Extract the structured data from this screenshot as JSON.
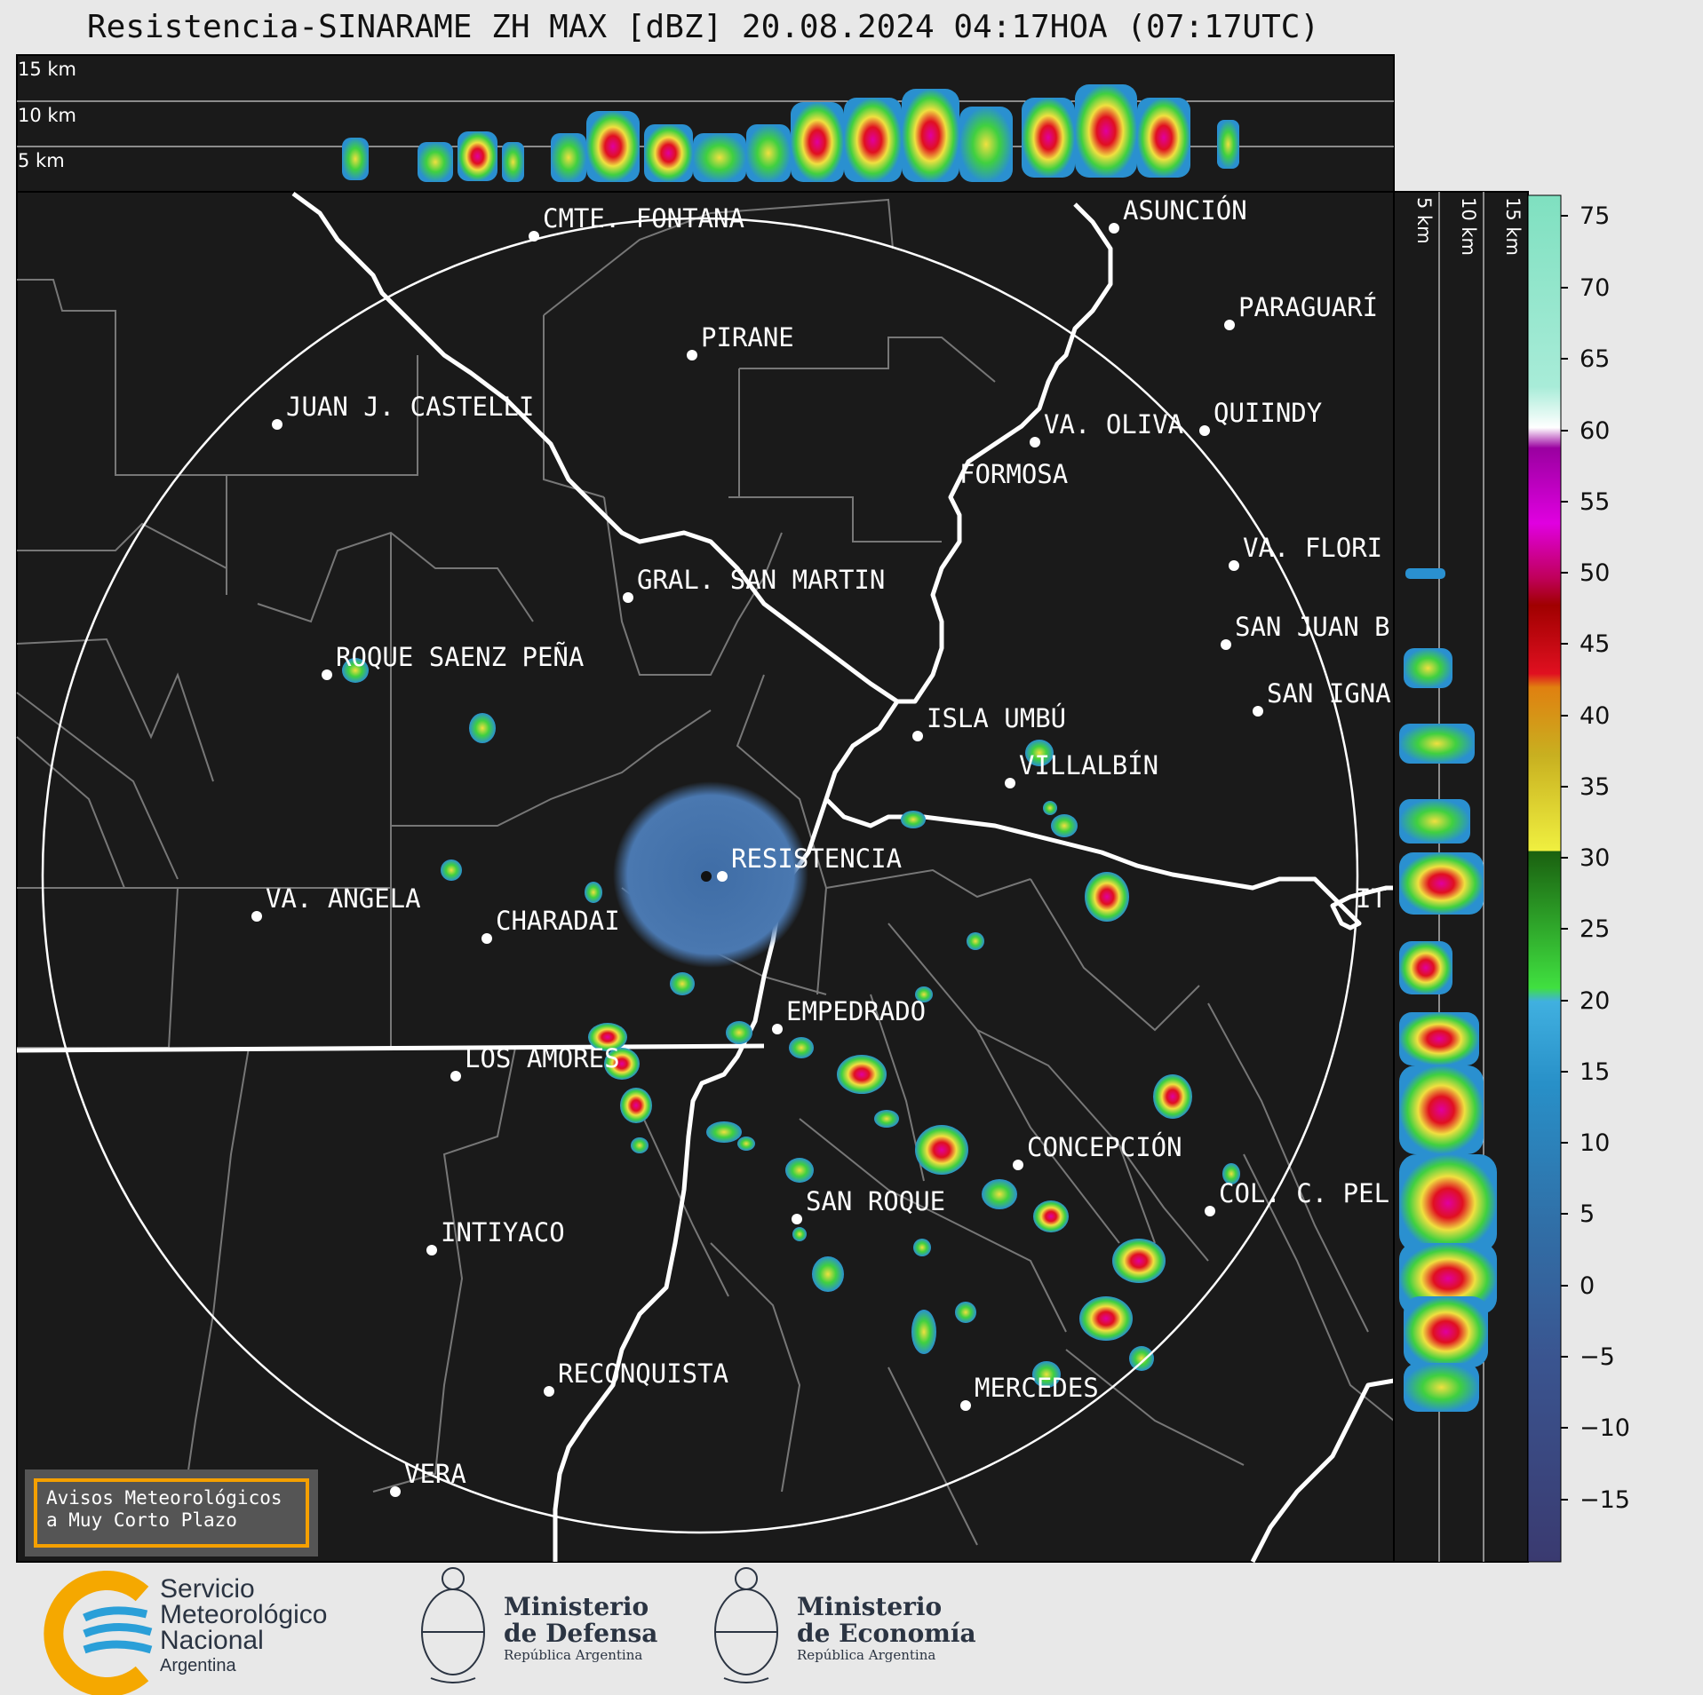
{
  "title": "Resistencia-SINARAME ZH MAX [dBZ] 20.08.2024 04:17HOA (07:17UTC)",
  "profile_top_labels": [
    "15 km",
    "10 km",
    "5 km"
  ],
  "profile_side_labels": [
    "5 km",
    "10 km",
    "15 km"
  ],
  "colorbar": {
    "ticks": [
      "75",
      "70",
      "65",
      "60",
      "55",
      "50",
      "45",
      "40",
      "35",
      "30",
      "25",
      "20",
      "15",
      "10",
      "5",
      "0",
      "−5",
      "−10",
      "−15"
    ]
  },
  "places": [
    {
      "name": "CMTE. FONTANA"
    },
    {
      "name": "ASUNCIÓN"
    },
    {
      "name": "PARAGUARÍ"
    },
    {
      "name": "PIRANE"
    },
    {
      "name": "JUAN J. CASTELLI"
    },
    {
      "name": "VA. OLIVA"
    },
    {
      "name": "QUIINDY"
    },
    {
      "name": "FORMOSA"
    },
    {
      "name": "VA. FLORI"
    },
    {
      "name": "GRAL. SAN MARTIN"
    },
    {
      "name": "SAN JUAN B"
    },
    {
      "name": "ROQUE SAENZ PEÑA"
    },
    {
      "name": "SAN IGNA"
    },
    {
      "name": "ISLA UMBÚ"
    },
    {
      "name": "VILLALBÍN"
    },
    {
      "name": "RESISTENCIA"
    },
    {
      "name": "VA. ANGELA"
    },
    {
      "name": "CHARADAI"
    },
    {
      "name": "IT"
    },
    {
      "name": "EMPEDRADO"
    },
    {
      "name": "LOS AMORES"
    },
    {
      "name": "CONCEPCIÓN"
    },
    {
      "name": "COL. C. PEL"
    },
    {
      "name": "SAN ROQUE"
    },
    {
      "name": "INTIYACO"
    },
    {
      "name": "RECONQUISTA"
    },
    {
      "name": "MERCEDES"
    },
    {
      "name": "VERA"
    }
  ],
  "avisos": {
    "line1": "Avisos Meteorológicos",
    "line2": "a Muy Corto Plazo"
  },
  "logos": {
    "smn": {
      "line1": "Servicio",
      "line2": "Meteorológico",
      "line3": "Nacional",
      "line4": "Argentina"
    },
    "defensa": {
      "line1": "Ministerio",
      "line2": "de Defensa",
      "line3": "República Argentina"
    },
    "economia": {
      "line1": "Ministerio",
      "line2": "de Economía",
      "line3": "República Argentina"
    }
  },
  "colors": {
    "background": "#1a1a1a",
    "page": "#e8e8e8",
    "smn_yellow": "#f5a800",
    "smn_blue": "#2a9fd8"
  }
}
